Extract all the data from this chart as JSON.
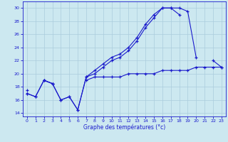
{
  "xlabel": "Graphe des températures (°c)",
  "hours": [
    0,
    1,
    2,
    3,
    4,
    5,
    6,
    7,
    8,
    9,
    10,
    11,
    12,
    13,
    14,
    15,
    16,
    17,
    18,
    19,
    20,
    21,
    22,
    23
  ],
  "line_jagged": [
    17.0,
    16.5,
    19.0,
    18.5,
    16.0,
    16.5,
    14.5,
    19.5,
    20.0,
    21.0,
    22.0,
    22.5,
    23.5,
    25.0,
    27.0,
    28.5,
    30.0,
    30.0,
    30.0,
    29.5,
    22.5,
    null,
    22.0,
    21.0
  ],
  "line_upper": [
    17.0,
    16.5,
    19.0,
    18.5,
    16.0,
    16.5,
    14.5,
    19.5,
    20.5,
    21.5,
    22.5,
    23.0,
    24.0,
    25.5,
    27.5,
    29.0,
    30.0,
    30.0,
    29.0,
    null,
    null,
    null,
    null,
    null
  ],
  "line_flat": [
    17.5,
    null,
    19.0,
    18.5,
    null,
    null,
    null,
    19.0,
    19.5,
    19.5,
    19.5,
    19.5,
    20.0,
    20.0,
    20.0,
    20.0,
    20.5,
    20.5,
    20.5,
    20.5,
    21.0,
    21.0,
    21.0,
    21.0
  ],
  "line_color": "#1a1acc",
  "bg_color": "#cce8f0",
  "grid_color": "#aaccdd",
  "ylim": [
    13.5,
    31.0
  ],
  "xlim": [
    -0.5,
    23.5
  ],
  "yticks": [
    14,
    16,
    18,
    20,
    22,
    24,
    26,
    28,
    30
  ],
  "xticks": [
    0,
    1,
    2,
    3,
    4,
    5,
    6,
    7,
    8,
    9,
    10,
    11,
    12,
    13,
    14,
    15,
    16,
    17,
    18,
    19,
    20,
    21,
    22,
    23
  ]
}
